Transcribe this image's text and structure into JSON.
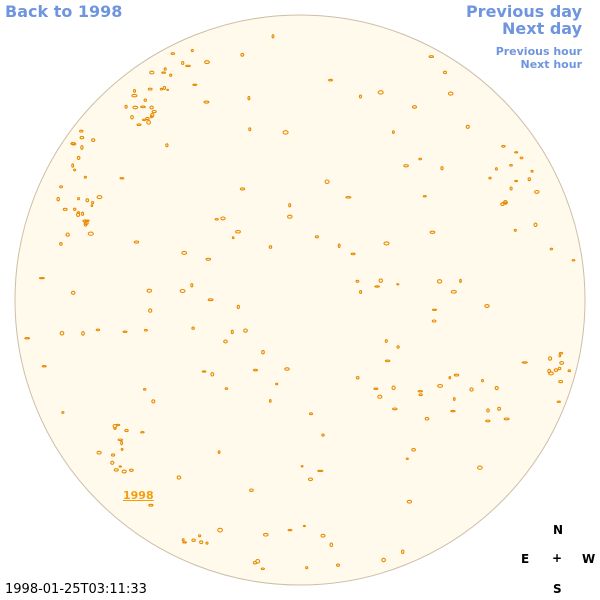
{
  "nav": {
    "back": "Back to 1998",
    "previous_day": "Previous day",
    "next_day": "Next day",
    "previous_hour": "Previous hour",
    "next_hour": "Next hour"
  },
  "year_link": "1998",
  "timestamp": "1998-01-25T03:11:33",
  "compass": {
    "north": "N",
    "east": "E",
    "center": "+",
    "west": "W",
    "south": "S"
  },
  "colors": {
    "link": "#6f95de",
    "disk_fill": "#fffaeb",
    "disk_edge": "#cbbfa8",
    "contour": "#e88a00"
  }
}
